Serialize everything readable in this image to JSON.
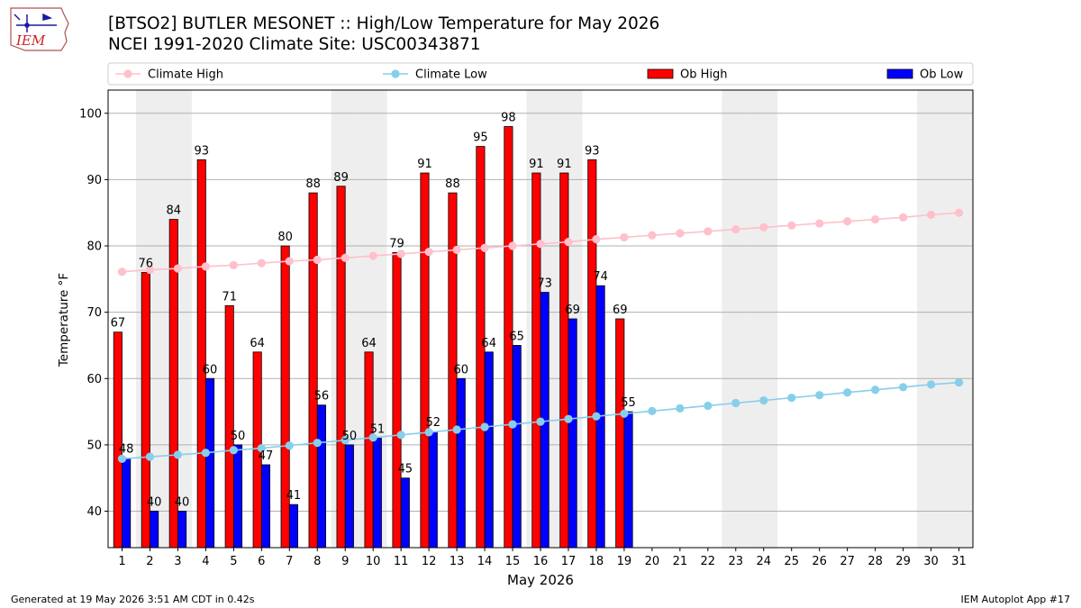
{
  "titles": {
    "line1": "[BTSO2] BUTLER MESONET :: High/Low Temperature for May 2026",
    "line2": "NCEI 1991-2020 Climate Site: USC00343871"
  },
  "logo": {
    "text": "IEM",
    "icon": "iem-iowa-weather-logo"
  },
  "footer": {
    "left": "Generated at 19 May 2026 3:51 AM CDT in 0.42s",
    "right": "IEM Autoplot App #17"
  },
  "colors": {
    "ob_high": "#ff0000",
    "ob_low": "#0000ff",
    "climate_high": "#ffc0cb",
    "climate_low": "#87ceeb",
    "weekend_band": "#eeeeee",
    "grid": "#b0b0b0"
  },
  "chart_data": {
    "type": "bar",
    "xlabel": "May 2026",
    "ylabel": "Temperature °F",
    "ylim": [
      34.5,
      103.5
    ],
    "yticks": [
      40,
      50,
      60,
      70,
      80,
      90,
      100
    ],
    "grid": "horizontal",
    "legend_position": "top",
    "days": [
      1,
      2,
      3,
      4,
      5,
      6,
      7,
      8,
      9,
      10,
      11,
      12,
      13,
      14,
      15,
      16,
      17,
      18,
      19,
      20,
      21,
      22,
      23,
      24,
      25,
      26,
      27,
      28,
      29,
      30,
      31
    ],
    "weekend_days": [
      2,
      3,
      9,
      10,
      16,
      17,
      23,
      24,
      30,
      31
    ],
    "legend": [
      "Climate High",
      "Climate Low",
      "Ob High",
      "Ob Low"
    ],
    "series": [
      {
        "name": "Ob High",
        "kind": "bar",
        "values": [
          67,
          76,
          84,
          93,
          71,
          64,
          80,
          88,
          89,
          64,
          79,
          91,
          88,
          95,
          98,
          91,
          91,
          93,
          69
        ]
      },
      {
        "name": "Ob Low",
        "kind": "bar",
        "values": [
          48,
          40,
          40,
          60,
          50,
          47,
          41,
          56,
          50,
          51,
          45,
          52,
          60,
          64,
          65,
          73,
          69,
          74,
          55
        ]
      },
      {
        "name": "Climate High",
        "kind": "line",
        "values": [
          76.1,
          76.4,
          76.6,
          76.9,
          77.1,
          77.4,
          77.7,
          77.9,
          78.2,
          78.5,
          78.8,
          79.1,
          79.4,
          79.7,
          80.0,
          80.3,
          80.6,
          81.0,
          81.3,
          81.6,
          81.9,
          82.2,
          82.5,
          82.8,
          83.1,
          83.4,
          83.7,
          84.0,
          84.3,
          84.7,
          85.0
        ]
      },
      {
        "name": "Climate Low",
        "kind": "line",
        "values": [
          47.9,
          48.2,
          48.5,
          48.8,
          49.2,
          49.5,
          49.9,
          50.3,
          50.7,
          51.1,
          51.5,
          51.9,
          52.3,
          52.7,
          53.1,
          53.5,
          53.9,
          54.3,
          54.7,
          55.1,
          55.5,
          55.9,
          56.3,
          56.7,
          57.1,
          57.5,
          57.9,
          58.3,
          58.7,
          59.1,
          59.4
        ]
      }
    ]
  }
}
